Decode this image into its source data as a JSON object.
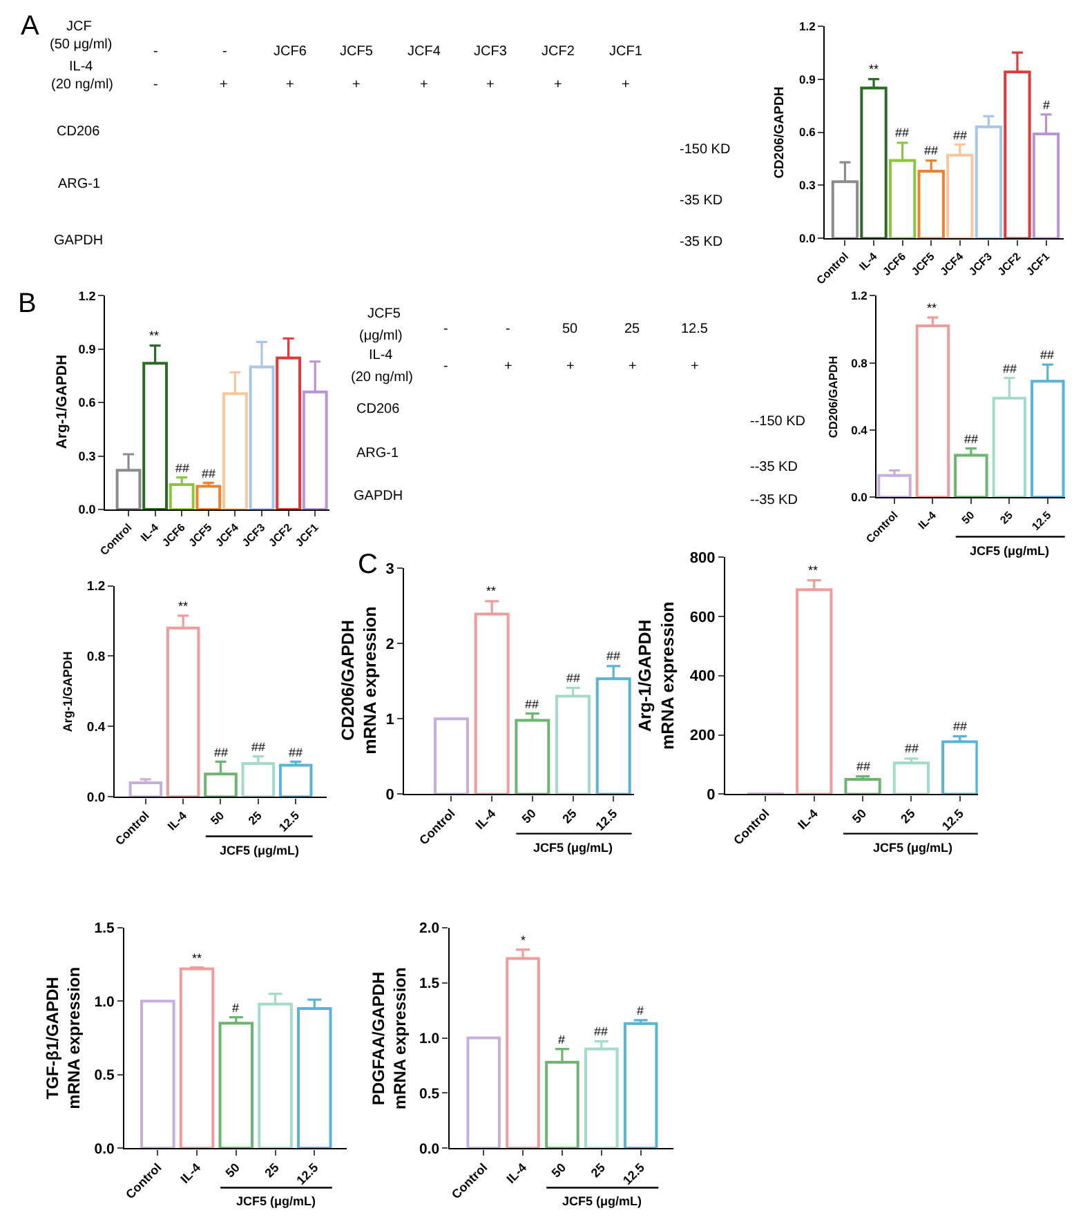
{
  "chart_data": [
    {
      "type": "other",
      "annotations": [
        "A",
        "JCF",
        "(50 μg/ml)",
        "IL-4",
        "(20 ng/ml)",
        "-",
        "-",
        "JCF6",
        "JCF5",
        "JCF4",
        "JCF3",
        "JCF2",
        "JCF1",
        "-",
        "+",
        "+",
        "+",
        "+",
        "+",
        "+",
        "+",
        "CD206",
        "ARG-1",
        "GAPDH",
        "-150 KD",
        "-35 KD",
        "-35 KD"
      ]
    },
    {
      "type": "bar",
      "categories": [
        "Control",
        "IL-4",
        "JCF6",
        "JCF5",
        "JCF4",
        "JCF3",
        "JCF2",
        "JCF1"
      ],
      "values": [
        0.32,
        0.85,
        0.44,
        0.38,
        0.47,
        0.63,
        0.94,
        0.59
      ],
      "errors": [
        [
          0.32,
          0.43
        ],
        [
          0.85,
          0.9
        ],
        [
          0.44,
          0.54
        ],
        [
          0.38,
          0.44
        ],
        [
          0.47,
          0.53
        ],
        [
          0.63,
          0.69
        ],
        [
          0.94,
          1.05
        ],
        [
          0.59,
          0.7
        ]
      ],
      "colors": [
        "#8c8c8c",
        "#2d6a27",
        "#8cc63e",
        "#f0822d",
        "#f6c89b",
        "#a9c5e8",
        "#e0393a",
        "#b994cf"
      ],
      "ylim": [
        0,
        1.2
      ],
      "yticks": [
        {
          "value": 0,
          "label": "0.0"
        },
        0.3,
        0.6,
        0.9,
        1.2
      ],
      "ylabel": "CD206/GAPDH",
      "annotations": [
        {
          "text": "**",
          "x": "IL-4",
          "y": 0.9
        },
        {
          "text": "##",
          "x": "JCF6",
          "y": 0.54
        },
        {
          "text": "##",
          "x": "JCF5",
          "y": 0.44
        },
        {
          "text": "##",
          "x": "JCF4",
          "y": 0.53
        },
        {
          "text": "#",
          "x": "JCF1",
          "y": 0.7
        }
      ]
    },
    {
      "type": "bar",
      "categories": [
        "Control",
        "IL-4",
        "JCF6",
        "JCF5",
        "JCF4",
        "JCF3",
        "JCF2",
        "JCF1"
      ],
      "values": [
        0.22,
        0.82,
        0.14,
        0.13,
        0.65,
        0.8,
        0.85,
        0.66
      ],
      "errors": [
        [
          0.22,
          0.31
        ],
        [
          0.82,
          0.92
        ],
        [
          0.14,
          0.18
        ],
        [
          0.13,
          0.15
        ],
        [
          0.65,
          0.77
        ],
        [
          0.8,
          0.94
        ],
        [
          0.85,
          0.96
        ],
        [
          0.66,
          0.83
        ]
      ],
      "colors": [
        "#8c8c8c",
        "#2d6a27",
        "#8cc63e",
        "#f0822d",
        "#f6c89b",
        "#a9c5e8",
        "#e0393a",
        "#b994cf"
      ],
      "ylim": [
        0,
        1.2
      ],
      "yticks": [
        {
          "value": 0,
          "label": "0.0"
        },
        0.3,
        0.6,
        0.9,
        1.2
      ],
      "ylabel": "Arg-1/GAPDH",
      "annotations": [
        "B",
        {
          "text": "**",
          "x": "IL-4",
          "y": 0.92
        },
        {
          "text": "##",
          "x": "JCF6",
          "y": 0.18
        },
        {
          "text": "##",
          "x": "JCF5",
          "y": 0.15
        }
      ]
    },
    {
      "type": "other",
      "annotations": [
        "JCF5",
        "(μg/ml)",
        "IL-4",
        "(20 ng/ml)",
        "-",
        "-",
        "50",
        "25",
        "12.5",
        "-",
        "+",
        "+",
        "+",
        "+",
        "CD206",
        "ARG-1",
        "GAPDH",
        "--150 KD",
        "--35 KD",
        "--35 KD"
      ]
    },
    {
      "type": "bar",
      "categories": [
        "Control",
        "IL-4",
        "50",
        "25",
        "12.5"
      ],
      "values": [
        0.13,
        1.02,
        0.25,
        0.59,
        0.69
      ],
      "errors": [
        [
          0.13,
          0.16
        ],
        [
          1.02,
          1.07
        ],
        [
          0.25,
          0.29
        ],
        [
          0.59,
          0.71
        ],
        [
          0.69,
          0.79
        ]
      ],
      "colors": [
        "#c7aedb",
        "#f29b9b",
        "#6cb56f",
        "#a3dbc6",
        "#59b3d6"
      ],
      "ylim": [
        0,
        1.2
      ],
      "yticks": [
        {
          "value": 0,
          "label": "0.0"
        },
        0.4,
        0.8,
        1.2
      ],
      "ylabel": "CD206/GAPDH",
      "xlabel": "JCF5 (μg/mL)",
      "annotations": [
        {
          "text": "**",
          "x": "IL-4",
          "y": 1.07
        },
        {
          "text": "##",
          "x": "50",
          "y": 0.29
        },
        {
          "text": "##",
          "x": "25",
          "y": 0.71
        },
        {
          "text": "##",
          "x": "12.5",
          "y": 0.79
        }
      ]
    },
    {
      "type": "bar",
      "categories": [
        "Control",
        "IL-4",
        "50",
        "25",
        "12.5"
      ],
      "values": [
        0.08,
        0.96,
        0.13,
        0.19,
        0.18
      ],
      "errors": [
        [
          0.08,
          0.1
        ],
        [
          0.96,
          1.03
        ],
        [
          0.13,
          0.2
        ],
        [
          0.19,
          0.23
        ],
        [
          0.18,
          0.2
        ]
      ],
      "colors": [
        "#c7aedb",
        "#f29b9b",
        "#6cb56f",
        "#a3dbc6",
        "#59b3d6"
      ],
      "ylim": [
        0,
        1.2
      ],
      "yticks": [
        {
          "value": 0,
          "label": "0.0"
        },
        0.4,
        0.8,
        1.2
      ],
      "ylabel": "Arg-1/GAPDH",
      "xlabel": "JCF5 (μg/mL)",
      "annotations": [
        {
          "text": "**",
          "x": "IL-4",
          "y": 1.03
        },
        {
          "text": "##",
          "x": "50",
          "y": 0.2
        },
        {
          "text": "##",
          "x": "25",
          "y": 0.23
        },
        {
          "text": "##",
          "x": "12.5",
          "y": 0.2
        }
      ]
    },
    {
      "type": "bar",
      "categories": [
        "Control",
        "IL-4",
        "50",
        "25",
        "12.5"
      ],
      "values": [
        1.0,
        2.39,
        0.98,
        1.3,
        1.53
      ],
      "errors": [
        null,
        [
          2.39,
          2.56
        ],
        [
          0.98,
          1.07
        ],
        [
          1.3,
          1.41
        ],
        [
          1.53,
          1.7
        ]
      ],
      "colors": [
        "#c7aedb",
        "#f29b9b",
        "#6cb56f",
        "#a3dbc6",
        "#59b3d6"
      ],
      "ylim": [
        0,
        3
      ],
      "yticks": [
        0,
        1,
        2,
        3
      ],
      "ylabel": "CD206/GAPDH\nmRNA expression",
      "xlabel": "JCF5 (μg/mL)",
      "annotations": [
        "C",
        {
          "text": "**",
          "x": "IL-4",
          "y": 2.56
        },
        {
          "text": "##",
          "x": "50",
          "y": 1.07
        },
        {
          "text": "##",
          "x": "25",
          "y": 1.41
        },
        {
          "text": "##",
          "x": "12.5",
          "y": 1.7
        }
      ]
    },
    {
      "type": "bar",
      "categories": [
        "Control",
        "IL-4",
        "50",
        "25",
        "12.5"
      ],
      "values": [
        1,
        690,
        50,
        105,
        177
      ],
      "errors": [
        null,
        [
          690,
          722
        ],
        [
          50,
          60
        ],
        [
          105,
          120
        ],
        [
          177,
          195
        ]
      ],
      "colors": [
        "#c7aedb",
        "#f29b9b",
        "#6cb56f",
        "#a3dbc6",
        "#59b3d6"
      ],
      "ylim": [
        0,
        800
      ],
      "yticks": [
        0,
        200,
        400,
        600,
        800
      ],
      "ylabel": "Arg-1/GAPDH\nmRNA expression",
      "xlabel": "JCF5 (μg/mL)",
      "annotations": [
        {
          "text": "**",
          "x": "IL-4",
          "y": 722
        },
        {
          "text": "##",
          "x": "50",
          "y": 60
        },
        {
          "text": "##",
          "x": "25",
          "y": 120
        },
        {
          "text": "##",
          "x": "12.5",
          "y": 195
        }
      ]
    },
    {
      "type": "bar",
      "categories": [
        "Control",
        "IL-4",
        "50",
        "25",
        "12.5"
      ],
      "values": [
        1.0,
        1.22,
        0.85,
        0.98,
        0.95
      ],
      "errors": [
        null,
        [
          1.22,
          1.23
        ],
        [
          0.85,
          0.89
        ],
        [
          0.98,
          1.05
        ],
        [
          0.95,
          1.01
        ]
      ],
      "colors": [
        "#c7aedb",
        "#f29b9b",
        "#6cb56f",
        "#a3dbc6",
        "#59b3d6"
      ],
      "ylim": [
        0,
        1.5
      ],
      "yticks": [
        {
          "value": 0,
          "label": "0.0"
        },
        0.5,
        {
          "value": 1,
          "label": "1.0"
        },
        1.5
      ],
      "ylabel": "TGF-β1/GAPDH\nmRNA expression",
      "xlabel": "JCF5 (μg/mL)",
      "annotations": [
        {
          "text": "**",
          "x": "IL-4",
          "y": 1.23
        },
        {
          "text": "#",
          "x": "50",
          "y": 0.89
        }
      ]
    },
    {
      "type": "bar",
      "categories": [
        "Control",
        "IL-4",
        "50",
        "25",
        "12.5"
      ],
      "values": [
        1.0,
        1.72,
        0.78,
        0.9,
        1.13
      ],
      "errors": [
        null,
        [
          1.72,
          1.8
        ],
        [
          0.78,
          0.9
        ],
        [
          0.9,
          0.97
        ],
        [
          1.13,
          1.16
        ]
      ],
      "colors": [
        "#c7aedb",
        "#f29b9b",
        "#6cb56f",
        "#a3dbc6",
        "#59b3d6"
      ],
      "ylim": [
        0,
        2
      ],
      "yticks": [
        {
          "value": 0,
          "label": "0.0"
        },
        0.5,
        {
          "value": 1,
          "label": "1.0"
        },
        1.5,
        {
          "value": 2,
          "label": "2.0"
        }
      ],
      "ylabel": "PDGFAA/GAPDH\nmRNA expression",
      "xlabel": "JCF5 (μg/mL)",
      "annotations": [
        {
          "text": "*",
          "x": "IL-4",
          "y": 1.8
        },
        {
          "text": "#",
          "x": "50",
          "y": 0.9
        },
        {
          "text": "##",
          "x": "25",
          "y": 0.97
        },
        {
          "text": "#",
          "x": "12.5",
          "y": 1.16
        }
      ]
    }
  ]
}
